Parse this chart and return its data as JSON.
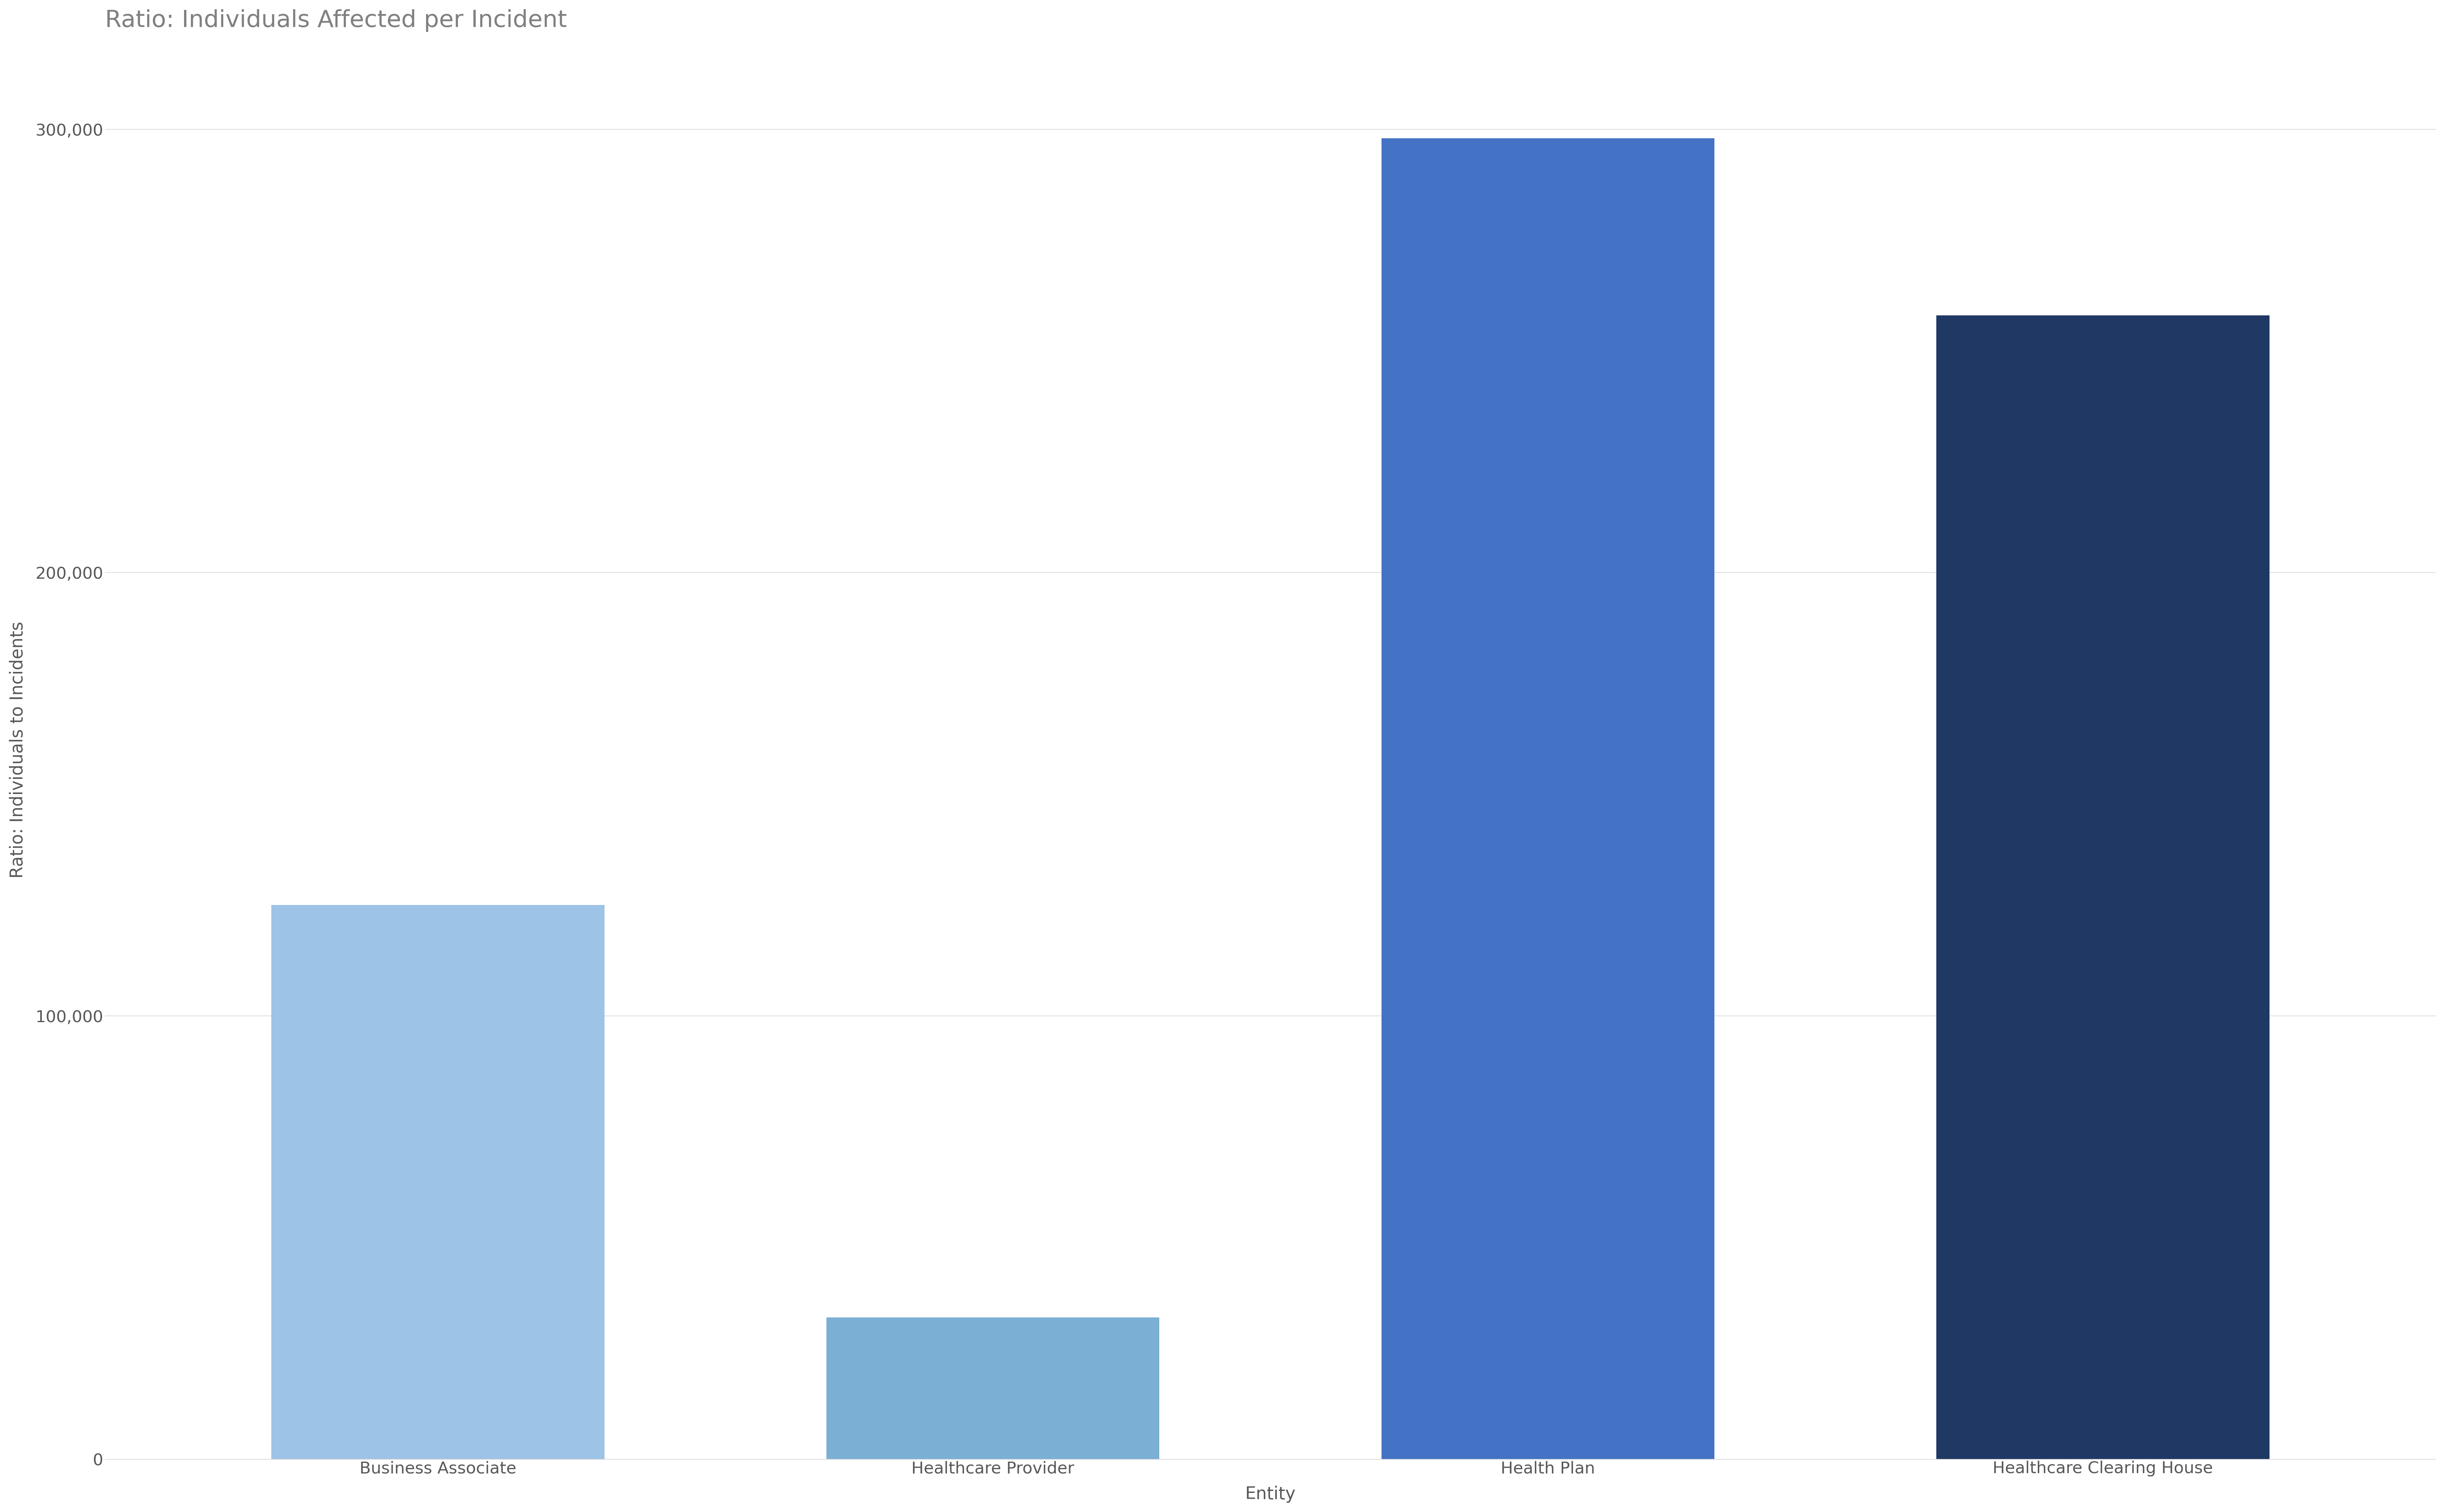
{
  "title": "Ratio: Individuals Affected per Incident",
  "categories": [
    "Business Associate",
    "Healthcare Provider",
    "Health Plan",
    "Healthcare Clearing House"
  ],
  "values": [
    125000,
    32000,
    298000,
    258000
  ],
  "bar_colors": [
    "#9dc3e6",
    "#7cafd4",
    "#4472c4",
    "#1f3864"
  ],
  "xlabel": "Entity",
  "ylabel": "Ratio: Individuals to Incidents",
  "ylim": [
    0,
    320000
  ],
  "yticks": [
    0,
    100000,
    200000,
    300000
  ],
  "background_color": "#ffffff",
  "title_color": "#808080",
  "tick_color": "#595959",
  "grid_color": "#d9d9d9",
  "title_fontsize": 52,
  "axis_label_fontsize": 38,
  "tick_fontsize": 36,
  "fig_width": 74.26,
  "fig_height": 45.93,
  "dpi": 100
}
